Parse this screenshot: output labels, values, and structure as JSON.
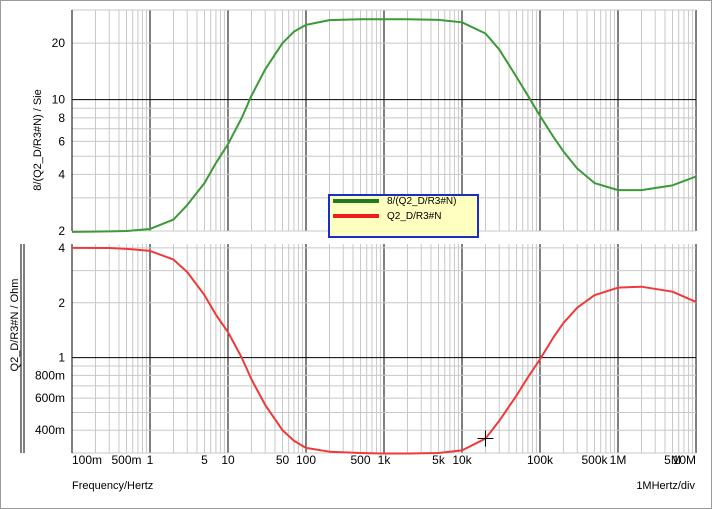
{
  "chart_data": [
    {
      "type": "line",
      "ylabel": "8/(Q2_D/R3#N)  / Sie",
      "xscale": "log",
      "yscale": "log",
      "xlim": [
        0.1,
        10000000
      ],
      "ylim": [
        2,
        30
      ],
      "yticks": [
        {
          "v": 2,
          "label": "2"
        },
        {
          "v": 4,
          "label": "4"
        },
        {
          "v": 6,
          "label": "6"
        },
        {
          "v": 8,
          "label": "8"
        },
        {
          "v": 10,
          "label": "10"
        },
        {
          "v": 20,
          "label": "20"
        }
      ],
      "series": [
        {
          "name": "8/(Q2_D/R3#N)",
          "color": "#3a9a3a",
          "x": [
            0.1,
            0.3,
            0.5,
            1,
            2,
            3,
            5,
            7,
            10,
            15,
            20,
            30,
            50,
            70,
            100,
            200,
            500,
            1000,
            2000,
            5000,
            10000,
            20000,
            30000,
            50000,
            70000,
            100000,
            150000,
            200000,
            300000,
            500000,
            1000000,
            2000000,
            5000000,
            10000000
          ],
          "y": [
            1.98,
            1.99,
            2.0,
            2.05,
            2.3,
            2.75,
            3.6,
            4.6,
            5.8,
            8.0,
            10.5,
            14.5,
            20.0,
            23.0,
            25.0,
            26.5,
            26.8,
            26.8,
            26.8,
            26.6,
            25.8,
            22.5,
            18.5,
            13.2,
            10.5,
            8.2,
            6.3,
            5.3,
            4.3,
            3.6,
            3.3,
            3.3,
            3.5,
            3.9
          ]
        }
      ]
    },
    {
      "type": "line",
      "ylabel": "Q2_D/R3#N  / Ohm",
      "xlabel": "Frequency/Hertz",
      "xscale": "log",
      "yscale": "log",
      "xlim": [
        0.1,
        10000000
      ],
      "ylim": [
        0.3,
        4.2
      ],
      "yticks": [
        {
          "v": 0.4,
          "label": "400m"
        },
        {
          "v": 0.6,
          "label": "600m"
        },
        {
          "v": 0.8,
          "label": "800m"
        },
        {
          "v": 1,
          "label": "1"
        },
        {
          "v": 2,
          "label": "2"
        },
        {
          "v": 4,
          "label": "4"
        }
      ],
      "xticks": [
        {
          "v": 0.1,
          "label": "100m"
        },
        {
          "v": 0.5,
          "label": "500m"
        },
        {
          "v": 1,
          "label": "1"
        },
        {
          "v": 5,
          "label": "5"
        },
        {
          "v": 10,
          "label": "10"
        },
        {
          "v": 50,
          "label": "50"
        },
        {
          "v": 100,
          "label": "100"
        },
        {
          "v": 500,
          "label": "500"
        },
        {
          "v": 1000,
          "label": "1k"
        },
        {
          "v": 5000,
          "label": "5k"
        },
        {
          "v": 10000,
          "label": "10k"
        },
        {
          "v": 100000,
          "label": "100k"
        },
        {
          "v": 500000,
          "label": "500k"
        },
        {
          "v": 1000000,
          "label": "1M"
        },
        {
          "v": 5000000,
          "label": "5M"
        },
        {
          "v": 10000000,
          "label": "10M"
        }
      ],
      "series": [
        {
          "name": "Q2_D/R3#N",
          "color": "#ee3a3a",
          "x": [
            0.1,
            0.3,
            0.5,
            1,
            2,
            3,
            5,
            7,
            10,
            15,
            20,
            30,
            50,
            70,
            100,
            200,
            500,
            1000,
            2000,
            5000,
            10000,
            20000,
            30000,
            50000,
            70000,
            100000,
            150000,
            200000,
            300000,
            500000,
            1000000,
            2000000,
            5000000,
            10000000
          ],
          "y": [
            4.0,
            3.99,
            3.95,
            3.85,
            3.45,
            2.95,
            2.2,
            1.72,
            1.38,
            1.0,
            0.76,
            0.55,
            0.4,
            0.35,
            0.32,
            0.305,
            0.3,
            0.298,
            0.298,
            0.3,
            0.31,
            0.36,
            0.45,
            0.62,
            0.78,
            0.98,
            1.3,
            1.55,
            1.88,
            2.2,
            2.42,
            2.45,
            2.3,
            2.02
          ]
        }
      ],
      "cursor": {
        "x": 20000,
        "y": 0.36
      }
    }
  ],
  "legend": {
    "items": [
      {
        "label": "8/(Q2_D/R3#N)",
        "color": "#1f7a1f"
      },
      {
        "label": "Q2_D/R3#N",
        "color": "#ee1c1c"
      }
    ]
  },
  "footer": {
    "xlabel": "Frequency/Hertz",
    "scale_note": "1MHertz/div"
  }
}
